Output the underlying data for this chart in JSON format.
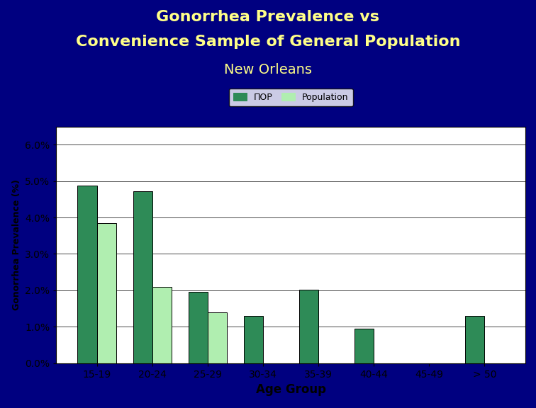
{
  "title_line1": "Gonorrhea Prevalence vs",
  "title_line2": "Convenience Sample of General Population",
  "title_line3": "New Orleans",
  "title_color": "#FFFF88",
  "background_color": "#000080",
  "chart_bg_color": "#FFFFFF",
  "categories": [
    "15-19",
    "20-24",
    "25-29",
    "30-34",
    "35-39",
    "40-44",
    "45-49",
    "> 50"
  ],
  "pop_values": [
    0.0487,
    0.0472,
    0.0195,
    0.013,
    0.0202,
    0.0095,
    0.0,
    0.013
  ],
  "pop_bar_color": "#2E8B57",
  "population_values": [
    0.0385,
    0.021,
    0.014,
    0.0,
    0.0,
    0.0,
    0.0,
    0.0
  ],
  "population_bar_color": "#B0EEB0",
  "ylabel": "Gonorrhea Prevalence (%)",
  "xlabel": "Age Group",
  "ylim": [
    0.0,
    0.065
  ],
  "yticks": [
    0.0,
    0.01,
    0.02,
    0.03,
    0.04,
    0.05,
    0.06
  ],
  "legend_pop_label": "ПОР",
  "legend_population_label": "Population",
  "bar_width": 0.35
}
